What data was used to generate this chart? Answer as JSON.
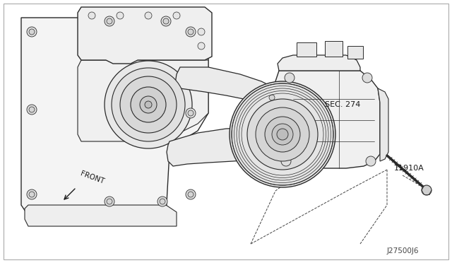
{
  "background_color": "#ffffff",
  "line_color": "#2a2a2a",
  "light_fill": "#f0f0f0",
  "medium_fill": "#e0e0e0",
  "dark_fill": "#cccccc",
  "text_color": "#1a1a1a",
  "dashed_color": "#444444",
  "labels": {
    "sec274": "SEC. 274",
    "part_num": "11910A",
    "front": "FRONT",
    "diagram_id": "J27500J6"
  },
  "fig_width": 6.4,
  "fig_height": 3.72,
  "dpi": 100
}
